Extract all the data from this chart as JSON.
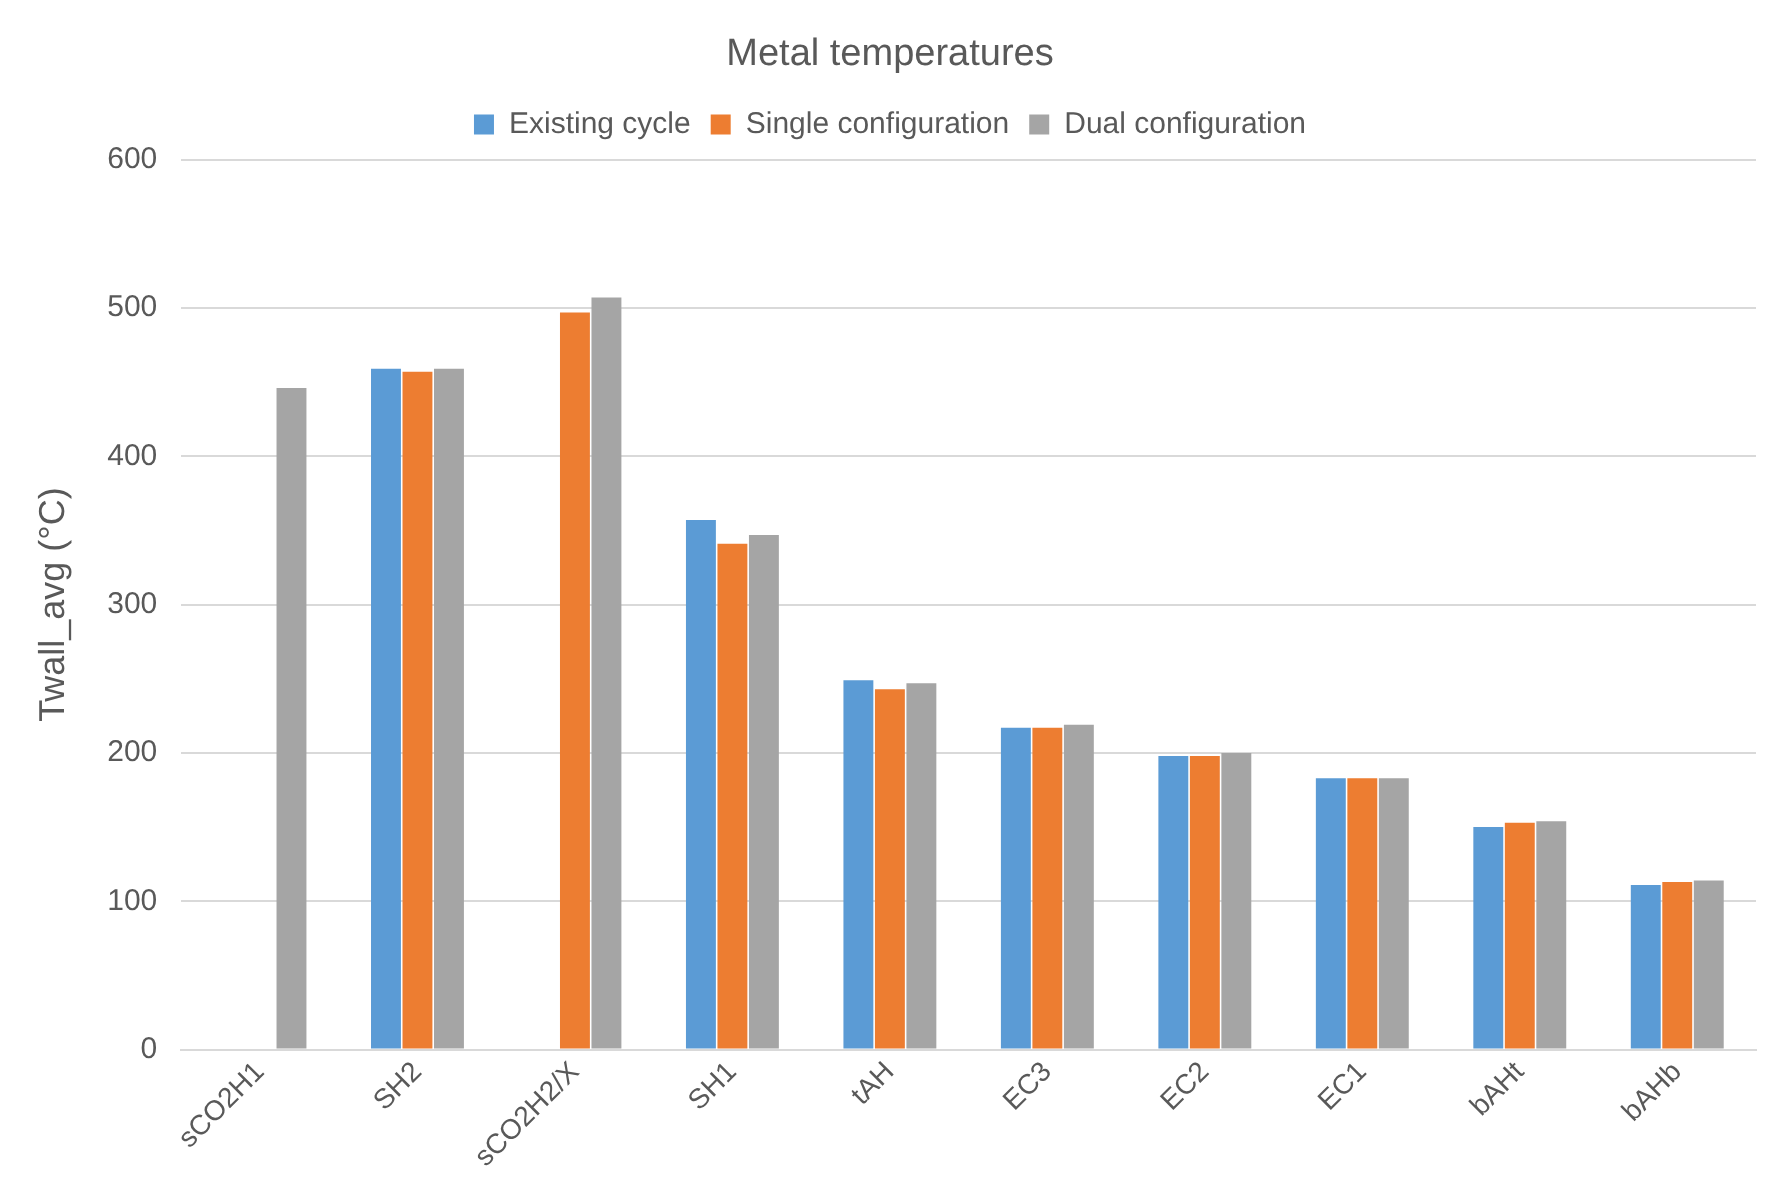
{
  "chart_data": {
    "type": "bar",
    "title": "Metal temperatures",
    "ylabel": "Twall_avg (°C)",
    "categories": [
      "sCO2H1",
      "SH2",
      "sCO2H2/X",
      "SH1",
      "tAH",
      "EC3",
      "EC2",
      "EC1",
      "bAHt",
      "bAHb"
    ],
    "series": [
      {
        "name": "Existing cycle",
        "color": "#5b9bd5",
        "values": [
          null,
          459,
          null,
          357,
          249,
          217,
          198,
          183,
          150,
          111
        ]
      },
      {
        "name": "Single configuration",
        "color": "#ed7d31",
        "values": [
          null,
          457,
          497,
          341,
          243,
          217,
          198,
          183,
          153,
          113
        ]
      },
      {
        "name": "Dual configuration",
        "color": "#a5a5a5",
        "values": [
          446,
          459,
          507,
          347,
          247,
          219,
          200,
          183,
          154,
          114
        ]
      }
    ],
    "ylim": [
      0,
      600
    ],
    "yticks": [
      0,
      100,
      200,
      300,
      400,
      500,
      600
    ],
    "grid": "y",
    "legend": "top"
  }
}
